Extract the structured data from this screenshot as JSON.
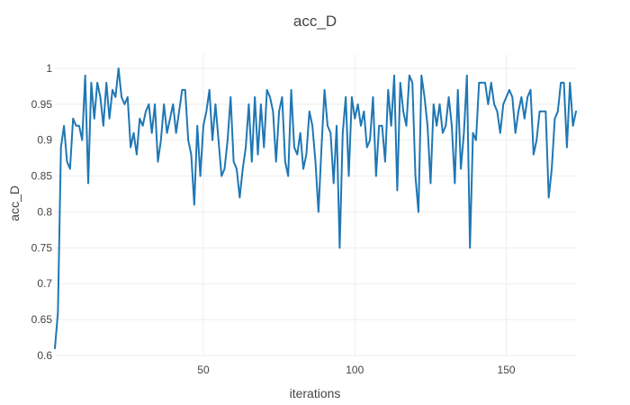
{
  "chart_data": {
    "type": "line",
    "title": "acc_D",
    "xlabel": "iterations",
    "ylabel": "acc_D",
    "xlim": [
      1,
      173
    ],
    "ylim": [
      0.6,
      1.02
    ],
    "x_ticks": [
      50,
      100,
      150
    ],
    "y_ticks": [
      0.6,
      0.65,
      0.7,
      0.75,
      0.8,
      0.85,
      0.9,
      0.95,
      1
    ],
    "y_tick_labels": [
      "0.6",
      "0.65",
      "0.7",
      "0.75",
      "0.8",
      "0.85",
      "0.9",
      "0.95",
      "1"
    ],
    "grid": true,
    "colors": {
      "series": "#1f77b4",
      "grid": "#eeeeee",
      "text": "#444444"
    },
    "series": [
      {
        "values": [
          0.61,
          0.66,
          0.89,
          0.92,
          0.87,
          0.86,
          0.93,
          0.92,
          0.92,
          0.9,
          0.99,
          0.84,
          0.98,
          0.93,
          0.98,
          0.96,
          0.92,
          0.98,
          0.93,
          0.97,
          0.96,
          1.0,
          0.96,
          0.95,
          0.96,
          0.89,
          0.91,
          0.88,
          0.93,
          0.92,
          0.94,
          0.95,
          0.91,
          0.95,
          0.87,
          0.9,
          0.95,
          0.91,
          0.93,
          0.95,
          0.91,
          0.94,
          0.97,
          0.97,
          0.9,
          0.88,
          0.81,
          0.92,
          0.85,
          0.92,
          0.94,
          0.97,
          0.9,
          0.95,
          0.9,
          0.85,
          0.86,
          0.9,
          0.96,
          0.87,
          0.86,
          0.82,
          0.86,
          0.89,
          0.95,
          0.87,
          0.96,
          0.88,
          0.95,
          0.89,
          0.97,
          0.96,
          0.94,
          0.87,
          0.94,
          0.96,
          0.87,
          0.85,
          0.97,
          0.89,
          0.88,
          0.91,
          0.86,
          0.88,
          0.94,
          0.92,
          0.87,
          0.8,
          0.89,
          0.97,
          0.92,
          0.91,
          0.84,
          0.92,
          0.75,
          0.91,
          0.96,
          0.85,
          0.96,
          0.93,
          0.95,
          0.92,
          0.94,
          0.89,
          0.9,
          0.96,
          0.85,
          0.92,
          0.92,
          0.87,
          0.97,
          0.92,
          0.99,
          0.83,
          0.98,
          0.94,
          0.92,
          0.99,
          0.98,
          0.85,
          0.8,
          0.99,
          0.96,
          0.92,
          0.84,
          0.95,
          0.92,
          0.95,
          0.91,
          0.92,
          0.96,
          0.92,
          0.84,
          0.97,
          0.86,
          0.91,
          0.99,
          0.75,
          0.91,
          0.9,
          0.98,
          0.98,
          0.98,
          0.95,
          0.98,
          0.95,
          0.94,
          0.91,
          0.95,
          0.96,
          0.97,
          0.96,
          0.91,
          0.94,
          0.96,
          0.93,
          0.96,
          0.97,
          0.88,
          0.9,
          0.94,
          0.94,
          0.94,
          0.82,
          0.86,
          0.93,
          0.94,
          0.98,
          0.98,
          0.89,
          0.98,
          0.92,
          0.94
        ]
      }
    ]
  }
}
